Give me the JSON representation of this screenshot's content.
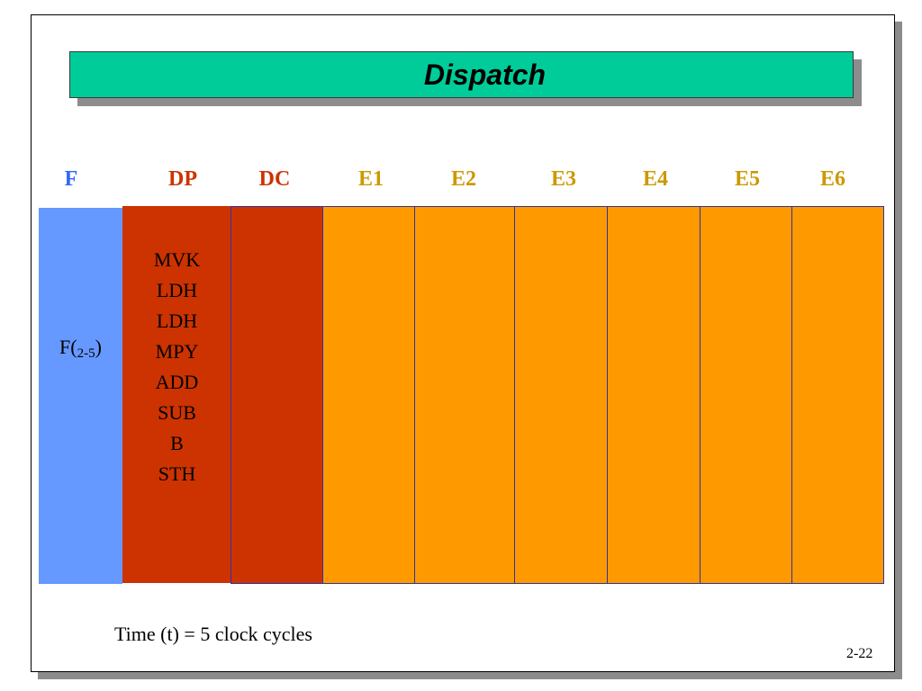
{
  "title": "Dispatch",
  "colors": {
    "title_bar": "#00cc99",
    "fetch_column": "#6699ff",
    "dispatch_columns": "#cc3300",
    "execute_columns": "#ff9900",
    "column_border": "#333399"
  },
  "stages": [
    {
      "label": "F",
      "color": "#3366ff"
    },
    {
      "label": "DP",
      "color": "#cc3300"
    },
    {
      "label": "DC",
      "color": "#cc3300"
    },
    {
      "label": "E1",
      "color": "#cc9900"
    },
    {
      "label": "E2",
      "color": "#cc9900"
    },
    {
      "label": "E3",
      "color": "#cc9900"
    },
    {
      "label": "E4",
      "color": "#cc9900"
    },
    {
      "label": "E5",
      "color": "#cc9900"
    },
    {
      "label": "E6",
      "color": "#cc9900"
    }
  ],
  "dispatch_instructions": [
    "MVK",
    "LDH",
    "LDH",
    "MPY",
    "ADD",
    "SUB",
    "B",
    "STH"
  ],
  "fetch_packet": {
    "prefix": "F(",
    "subscript": "2-5",
    "suffix": ")"
  },
  "time_label": "Time (t) = 5 clock cycles",
  "page_number": "2-22"
}
